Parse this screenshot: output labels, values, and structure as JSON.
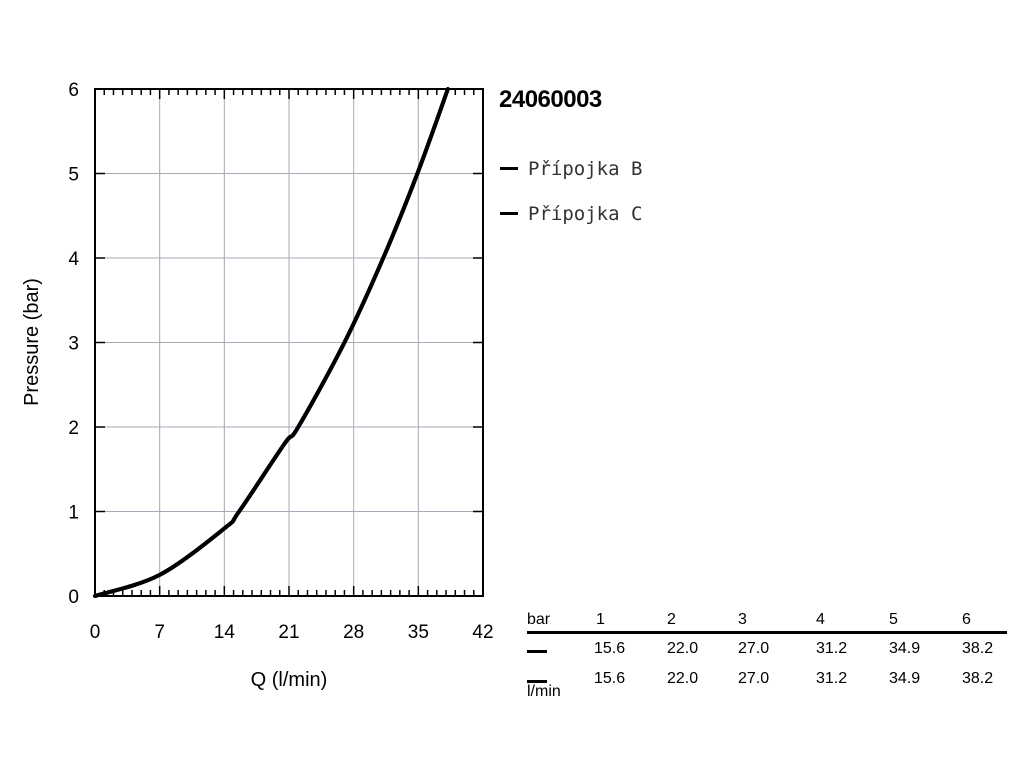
{
  "product_code": "24060003",
  "legend": [
    {
      "label": "Přípojka B",
      "color": "#000000"
    },
    {
      "label": "Přípojka C",
      "color": "#000000"
    }
  ],
  "chart_data": {
    "type": "line",
    "xlabel": "Q (l/min)",
    "ylabel": "Pressure (bar)",
    "xlim": [
      0,
      42
    ],
    "ylim": [
      0,
      6
    ],
    "xticks": [
      0,
      7,
      14,
      21,
      28,
      35,
      42
    ],
    "yticks": [
      0,
      1,
      2,
      3,
      4,
      5,
      6
    ],
    "grid": true,
    "legend_position": "right",
    "series": [
      {
        "name": "Přípojka B",
        "color": "#000000",
        "points": [
          [
            0,
            0
          ],
          [
            7,
            0.25
          ],
          [
            14,
            0.8
          ],
          [
            15.6,
            1
          ],
          [
            20.5,
            1.8
          ],
          [
            22.0,
            2
          ],
          [
            27.0,
            3
          ],
          [
            31.2,
            4
          ],
          [
            34.9,
            5
          ],
          [
            38.2,
            6
          ]
        ]
      },
      {
        "name": "Přípojka C",
        "color": "#000000",
        "points": [
          [
            0,
            0
          ],
          [
            7,
            0.25
          ],
          [
            14,
            0.8
          ],
          [
            15.6,
            1
          ],
          [
            20.5,
            1.8
          ],
          [
            22.0,
            2
          ],
          [
            27.0,
            3
          ],
          [
            31.2,
            4
          ],
          [
            34.9,
            5
          ],
          [
            38.2,
            6
          ]
        ]
      }
    ]
  },
  "table": {
    "unit_pressure": "bar",
    "unit_flow": "l/min",
    "pressures": [
      "1",
      "2",
      "3",
      "4",
      "5",
      "6"
    ],
    "rows": [
      {
        "series": "Přípojka B",
        "values": [
          "15.6",
          "22.0",
          "27.0",
          "31.2",
          "34.9",
          "38.2"
        ]
      },
      {
        "series": "Přípojka C",
        "values": [
          "15.6",
          "22.0",
          "27.0",
          "31.2",
          "34.9",
          "38.2"
        ]
      }
    ]
  }
}
